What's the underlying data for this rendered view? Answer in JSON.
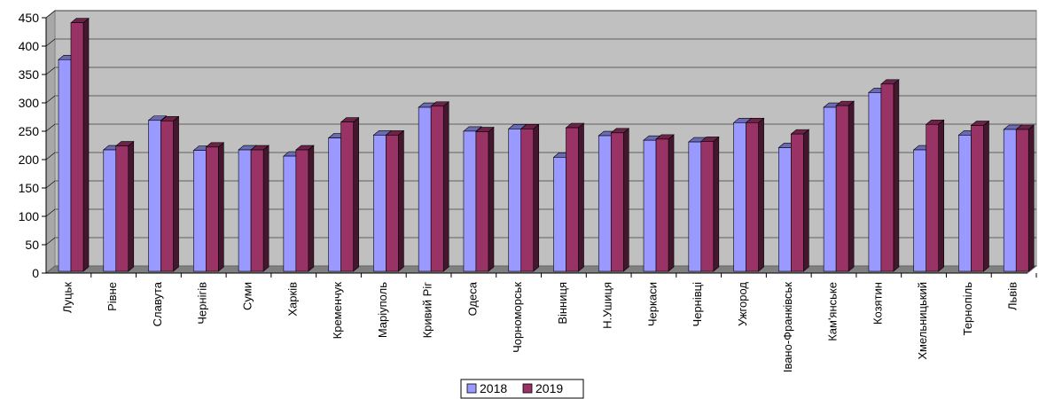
{
  "chart_data": {
    "type": "bar",
    "title": "",
    "xlabel": "",
    "ylabel": "",
    "ylim": [
      0,
      450
    ],
    "yticks": [
      0,
      50,
      100,
      150,
      200,
      250,
      300,
      350,
      400,
      450
    ],
    "grid": true,
    "legend_position": "bottom",
    "categories": [
      "Луцьк",
      "Рівне",
      "Славута",
      "Чернігів",
      "Суми",
      "Харків",
      "Кременчук",
      "Маріуполь",
      "Кривий Ріг",
      "Одеса",
      "Чорноморськ",
      "Вінниця",
      "Н.Ушиця",
      "Черкаси",
      "Чернівці",
      "Ужгород",
      "Івано-Франківськ",
      "Кам'янське",
      "Козятин",
      "Хмельницький",
      "Тернопіль",
      "Львів"
    ],
    "series": [
      {
        "name": "2018",
        "color": "#9999ff",
        "values": [
          373,
          214,
          266,
          213,
          214,
          203,
          235,
          240,
          289,
          247,
          251,
          201,
          239,
          231,
          228,
          262,
          218,
          289,
          315,
          214,
          240,
          250
        ]
      },
      {
        "name": "2019",
        "color": "#993366",
        "values": [
          438,
          221,
          265,
          219,
          214,
          214,
          263,
          240,
          291,
          246,
          251,
          253,
          244,
          233,
          229,
          262,
          242,
          292,
          330,
          259,
          257,
          250
        ]
      }
    ]
  }
}
